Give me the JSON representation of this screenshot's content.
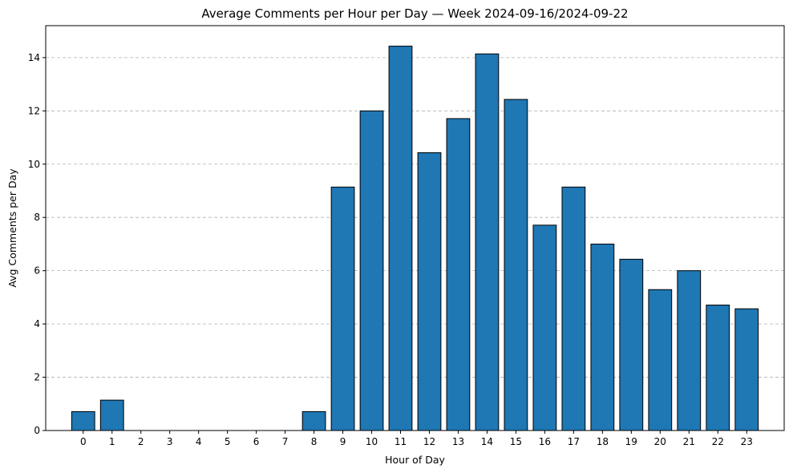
{
  "chart_data": {
    "type": "bar",
    "title": "Average Comments per Hour per Day — Week 2024-09-16/2024-09-22",
    "xlabel": "Hour of Day",
    "ylabel": "Avg Comments per Day",
    "categories": [
      "0",
      "1",
      "2",
      "3",
      "4",
      "5",
      "6",
      "7",
      "8",
      "9",
      "10",
      "11",
      "12",
      "13",
      "14",
      "15",
      "16",
      "17",
      "18",
      "19",
      "20",
      "21",
      "22",
      "23"
    ],
    "values": [
      0.71,
      1.14,
      0,
      0,
      0,
      0,
      0,
      0,
      0.71,
      9.14,
      12.0,
      14.43,
      10.43,
      11.71,
      14.14,
      12.43,
      7.71,
      9.14,
      7.0,
      6.43,
      5.29,
      6.0,
      4.71,
      4.57
    ],
    "ylim": [
      0,
      15.2
    ],
    "yticks": [
      0,
      2,
      4,
      6,
      8,
      10,
      12,
      14
    ],
    "grid": "y-dashed",
    "bar_color": "#1f77b4",
    "edge_color": "#000000"
  }
}
